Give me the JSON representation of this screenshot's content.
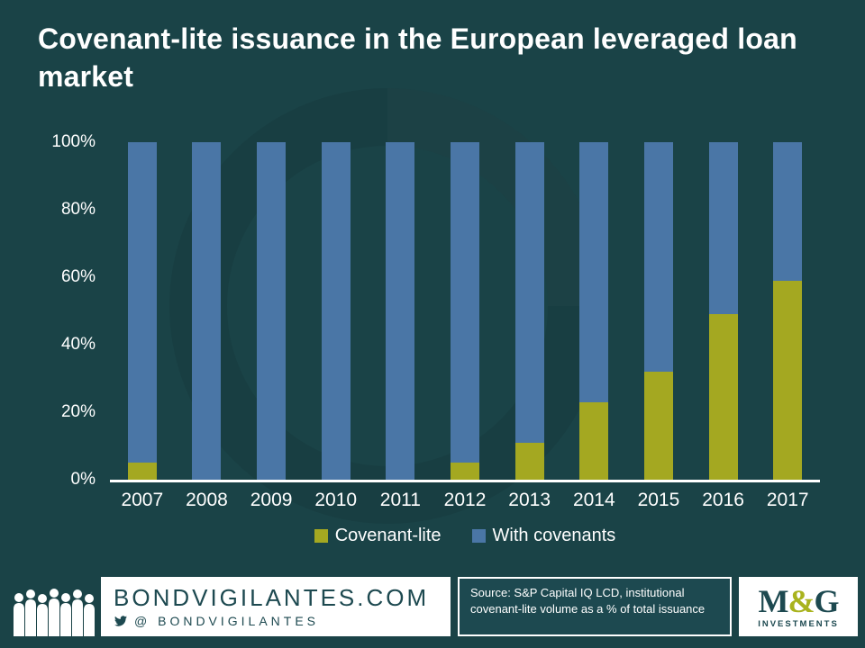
{
  "title": "Covenant-lite issuance in the European leveraged loan market",
  "colors": {
    "background": "#1a4347",
    "covenant_lite_green": "#a4a821",
    "with_covenants_blue": "#4a76a6",
    "footer_dark_teal": "#1d4950",
    "white": "#ffffff",
    "mg_ampersand_green": "#a9b31e"
  },
  "chart_data": {
    "type": "bar",
    "stacked": true,
    "percent_stacked": true,
    "title": "Covenant-lite issuance in the European leveraged loan market",
    "categories": [
      "2007",
      "2008",
      "2009",
      "2010",
      "2011",
      "2012",
      "2013",
      "2014",
      "2015",
      "2016",
      "2017"
    ],
    "series": [
      {
        "name": "Covenant-lite",
        "color": "#a4a821",
        "values": [
          5,
          0,
          0,
          0,
          0,
          5,
          11,
          23,
          32,
          49,
          59
        ]
      },
      {
        "name": "With covenants",
        "color": "#4a76a6",
        "values": [
          95,
          100,
          100,
          100,
          100,
          95,
          89,
          77,
          68,
          51,
          41
        ]
      }
    ],
    "xlabel": "",
    "ylabel": "",
    "ylim": [
      0,
      100
    ],
    "y_ticks": [
      "0%",
      "20%",
      "40%",
      "60%",
      "80%",
      "100%"
    ],
    "grid": false,
    "legend_position": "bottom"
  },
  "footer": {
    "brand": "BONDVIGILANTES.COM",
    "twitter_handle": "@ BONDVIGILANTES",
    "source_text": "Source: S&P Capital IQ LCD, institutional covenant-lite volume as a % of total issuance",
    "mg_logo": {
      "m": "M",
      "amp": "&",
      "g": "G",
      "sub": "INVESTMENTS"
    }
  }
}
